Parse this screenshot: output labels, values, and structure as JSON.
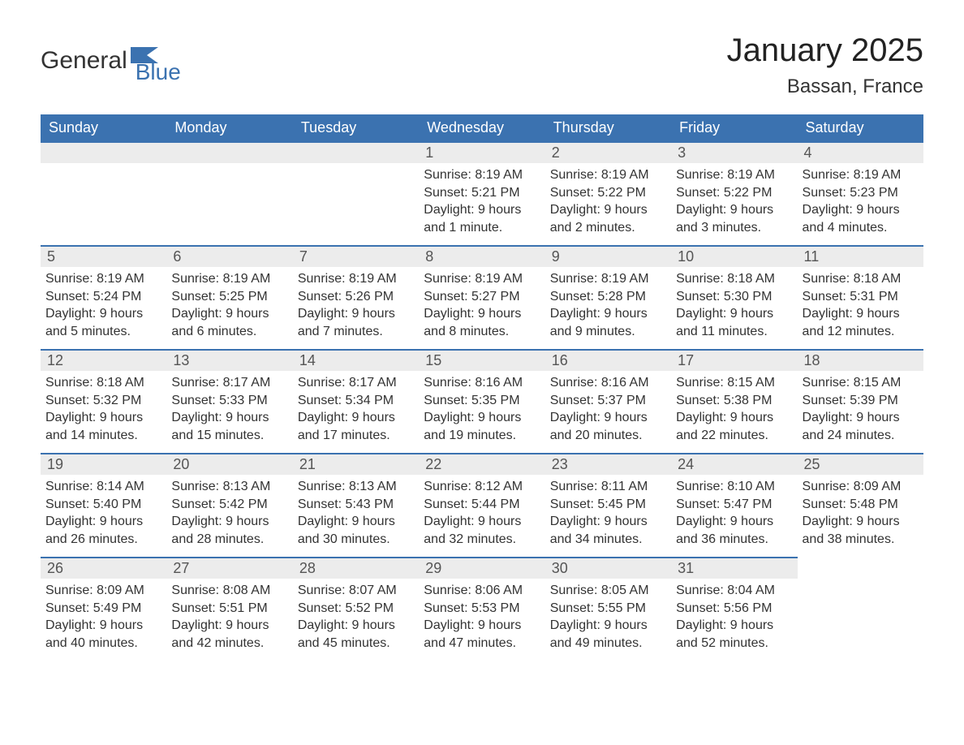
{
  "logo": {
    "word1": "General",
    "word2": "Blue"
  },
  "title": "January 2025",
  "location": "Bassan, France",
  "colors": {
    "header_bg": "#3b72b0",
    "header_text": "#ffffff",
    "daynum_bg": "#ececec",
    "daynum_border": "#3b72b0",
    "body_text": "#333333",
    "page_bg": "#ffffff"
  },
  "columns": [
    "Sunday",
    "Monday",
    "Tuesday",
    "Wednesday",
    "Thursday",
    "Friday",
    "Saturday"
  ],
  "weeks": [
    [
      null,
      null,
      null,
      {
        "n": "1",
        "sr": "Sunrise: 8:19 AM",
        "ss": "Sunset: 5:21 PM",
        "d1": "Daylight: 9 hours",
        "d2": "and 1 minute."
      },
      {
        "n": "2",
        "sr": "Sunrise: 8:19 AM",
        "ss": "Sunset: 5:22 PM",
        "d1": "Daylight: 9 hours",
        "d2": "and 2 minutes."
      },
      {
        "n": "3",
        "sr": "Sunrise: 8:19 AM",
        "ss": "Sunset: 5:22 PM",
        "d1": "Daylight: 9 hours",
        "d2": "and 3 minutes."
      },
      {
        "n": "4",
        "sr": "Sunrise: 8:19 AM",
        "ss": "Sunset: 5:23 PM",
        "d1": "Daylight: 9 hours",
        "d2": "and 4 minutes."
      }
    ],
    [
      {
        "n": "5",
        "sr": "Sunrise: 8:19 AM",
        "ss": "Sunset: 5:24 PM",
        "d1": "Daylight: 9 hours",
        "d2": "and 5 minutes."
      },
      {
        "n": "6",
        "sr": "Sunrise: 8:19 AM",
        "ss": "Sunset: 5:25 PM",
        "d1": "Daylight: 9 hours",
        "d2": "and 6 minutes."
      },
      {
        "n": "7",
        "sr": "Sunrise: 8:19 AM",
        "ss": "Sunset: 5:26 PM",
        "d1": "Daylight: 9 hours",
        "d2": "and 7 minutes."
      },
      {
        "n": "8",
        "sr": "Sunrise: 8:19 AM",
        "ss": "Sunset: 5:27 PM",
        "d1": "Daylight: 9 hours",
        "d2": "and 8 minutes."
      },
      {
        "n": "9",
        "sr": "Sunrise: 8:19 AM",
        "ss": "Sunset: 5:28 PM",
        "d1": "Daylight: 9 hours",
        "d2": "and 9 minutes."
      },
      {
        "n": "10",
        "sr": "Sunrise: 8:18 AM",
        "ss": "Sunset: 5:30 PM",
        "d1": "Daylight: 9 hours",
        "d2": "and 11 minutes."
      },
      {
        "n": "11",
        "sr": "Sunrise: 8:18 AM",
        "ss": "Sunset: 5:31 PM",
        "d1": "Daylight: 9 hours",
        "d2": "and 12 minutes."
      }
    ],
    [
      {
        "n": "12",
        "sr": "Sunrise: 8:18 AM",
        "ss": "Sunset: 5:32 PM",
        "d1": "Daylight: 9 hours",
        "d2": "and 14 minutes."
      },
      {
        "n": "13",
        "sr": "Sunrise: 8:17 AM",
        "ss": "Sunset: 5:33 PM",
        "d1": "Daylight: 9 hours",
        "d2": "and 15 minutes."
      },
      {
        "n": "14",
        "sr": "Sunrise: 8:17 AM",
        "ss": "Sunset: 5:34 PM",
        "d1": "Daylight: 9 hours",
        "d2": "and 17 minutes."
      },
      {
        "n": "15",
        "sr": "Sunrise: 8:16 AM",
        "ss": "Sunset: 5:35 PM",
        "d1": "Daylight: 9 hours",
        "d2": "and 19 minutes."
      },
      {
        "n": "16",
        "sr": "Sunrise: 8:16 AM",
        "ss": "Sunset: 5:37 PM",
        "d1": "Daylight: 9 hours",
        "d2": "and 20 minutes."
      },
      {
        "n": "17",
        "sr": "Sunrise: 8:15 AM",
        "ss": "Sunset: 5:38 PM",
        "d1": "Daylight: 9 hours",
        "d2": "and 22 minutes."
      },
      {
        "n": "18",
        "sr": "Sunrise: 8:15 AM",
        "ss": "Sunset: 5:39 PM",
        "d1": "Daylight: 9 hours",
        "d2": "and 24 minutes."
      }
    ],
    [
      {
        "n": "19",
        "sr": "Sunrise: 8:14 AM",
        "ss": "Sunset: 5:40 PM",
        "d1": "Daylight: 9 hours",
        "d2": "and 26 minutes."
      },
      {
        "n": "20",
        "sr": "Sunrise: 8:13 AM",
        "ss": "Sunset: 5:42 PM",
        "d1": "Daylight: 9 hours",
        "d2": "and 28 minutes."
      },
      {
        "n": "21",
        "sr": "Sunrise: 8:13 AM",
        "ss": "Sunset: 5:43 PM",
        "d1": "Daylight: 9 hours",
        "d2": "and 30 minutes."
      },
      {
        "n": "22",
        "sr": "Sunrise: 8:12 AM",
        "ss": "Sunset: 5:44 PM",
        "d1": "Daylight: 9 hours",
        "d2": "and 32 minutes."
      },
      {
        "n": "23",
        "sr": "Sunrise: 8:11 AM",
        "ss": "Sunset: 5:45 PM",
        "d1": "Daylight: 9 hours",
        "d2": "and 34 minutes."
      },
      {
        "n": "24",
        "sr": "Sunrise: 8:10 AM",
        "ss": "Sunset: 5:47 PM",
        "d1": "Daylight: 9 hours",
        "d2": "and 36 minutes."
      },
      {
        "n": "25",
        "sr": "Sunrise: 8:09 AM",
        "ss": "Sunset: 5:48 PM",
        "d1": "Daylight: 9 hours",
        "d2": "and 38 minutes."
      }
    ],
    [
      {
        "n": "26",
        "sr": "Sunrise: 8:09 AM",
        "ss": "Sunset: 5:49 PM",
        "d1": "Daylight: 9 hours",
        "d2": "and 40 minutes."
      },
      {
        "n": "27",
        "sr": "Sunrise: 8:08 AM",
        "ss": "Sunset: 5:51 PM",
        "d1": "Daylight: 9 hours",
        "d2": "and 42 minutes."
      },
      {
        "n": "28",
        "sr": "Sunrise: 8:07 AM",
        "ss": "Sunset: 5:52 PM",
        "d1": "Daylight: 9 hours",
        "d2": "and 45 minutes."
      },
      {
        "n": "29",
        "sr": "Sunrise: 8:06 AM",
        "ss": "Sunset: 5:53 PM",
        "d1": "Daylight: 9 hours",
        "d2": "and 47 minutes."
      },
      {
        "n": "30",
        "sr": "Sunrise: 8:05 AM",
        "ss": "Sunset: 5:55 PM",
        "d1": "Daylight: 9 hours",
        "d2": "and 49 minutes."
      },
      {
        "n": "31",
        "sr": "Sunrise: 8:04 AM",
        "ss": "Sunset: 5:56 PM",
        "d1": "Daylight: 9 hours",
        "d2": "and 52 minutes."
      },
      null
    ]
  ]
}
